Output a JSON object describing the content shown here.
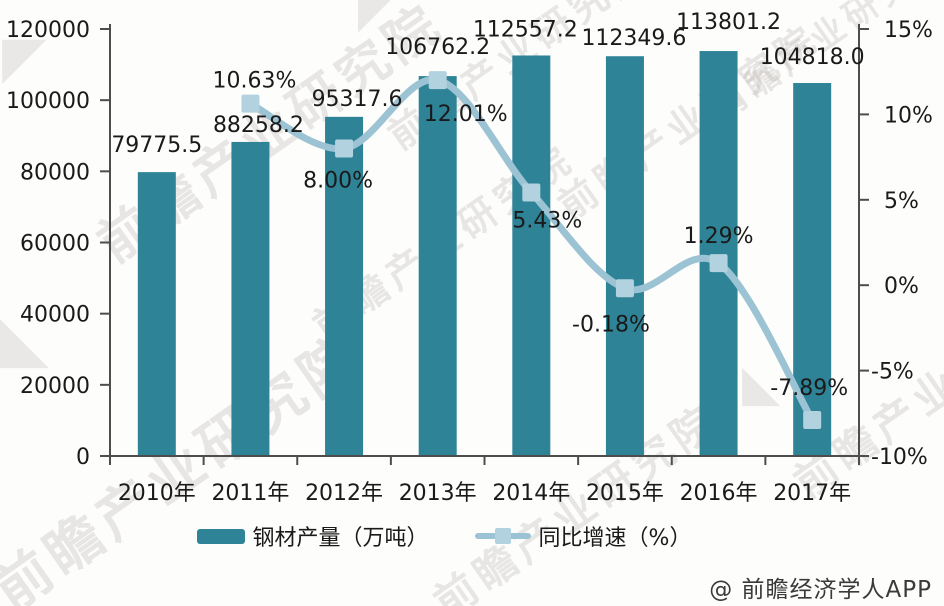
{
  "watermark": {
    "text": "前瞻产业研究院",
    "logo_glyph": "◣",
    "logo_glyph_alt": "◤"
  },
  "footer": {
    "credit": "@ 前瞻经济学人APP"
  },
  "legend": [
    {
      "label": "钢材产量（万吨）",
      "type": "bar"
    },
    {
      "label": "同比增速（%）",
      "type": "line"
    }
  ],
  "colors": {
    "bar": "#2E8397",
    "line": "#9CC3D3",
    "marker": "#B3D2DF",
    "axis": "#4D4D4D",
    "label_text": "#1A1A1A"
  },
  "chart_data": {
    "type": "bar+line combo",
    "categories": [
      "2010年",
      "2011年",
      "2012年",
      "2013年",
      "2014年",
      "2015年",
      "2016年",
      "2017年"
    ],
    "series": [
      {
        "name": "钢材产量（万吨）",
        "type": "bar",
        "axis": "left",
        "values": [
          79775.5,
          88258.2,
          95317.6,
          106762.2,
          112557.2,
          112349.6,
          113801.2,
          104818.0
        ],
        "data_labels": [
          "79775.5",
          "88258.2",
          "95317.6",
          "106762.2",
          "112557.2",
          "112349.6",
          "113801.2",
          "104818.0"
        ]
      },
      {
        "name": "同比增速（%）",
        "type": "line",
        "axis": "right",
        "values": [
          null,
          10.63,
          8.0,
          12.01,
          5.43,
          -0.18,
          1.29,
          -7.89
        ],
        "data_labels": [
          "",
          "10.63%",
          "8.00%",
          "12.01%",
          "5.43%",
          "-0.18%",
          "1.29%",
          "-7.89%"
        ]
      }
    ],
    "left_axis": {
      "min": 0,
      "max": 120000,
      "tick_step": 20000,
      "tick_labels": [
        "0",
        "20000",
        "40000",
        "60000",
        "80000",
        "100000",
        "120000"
      ]
    },
    "right_axis": {
      "min": -10,
      "max": 15,
      "tick_step": 5,
      "tick_labels": [
        "-10%",
        "-5%",
        "0%",
        "5%",
        "10%",
        "15%"
      ]
    },
    "grid": false,
    "legend_position": "bottom",
    "title": ""
  }
}
